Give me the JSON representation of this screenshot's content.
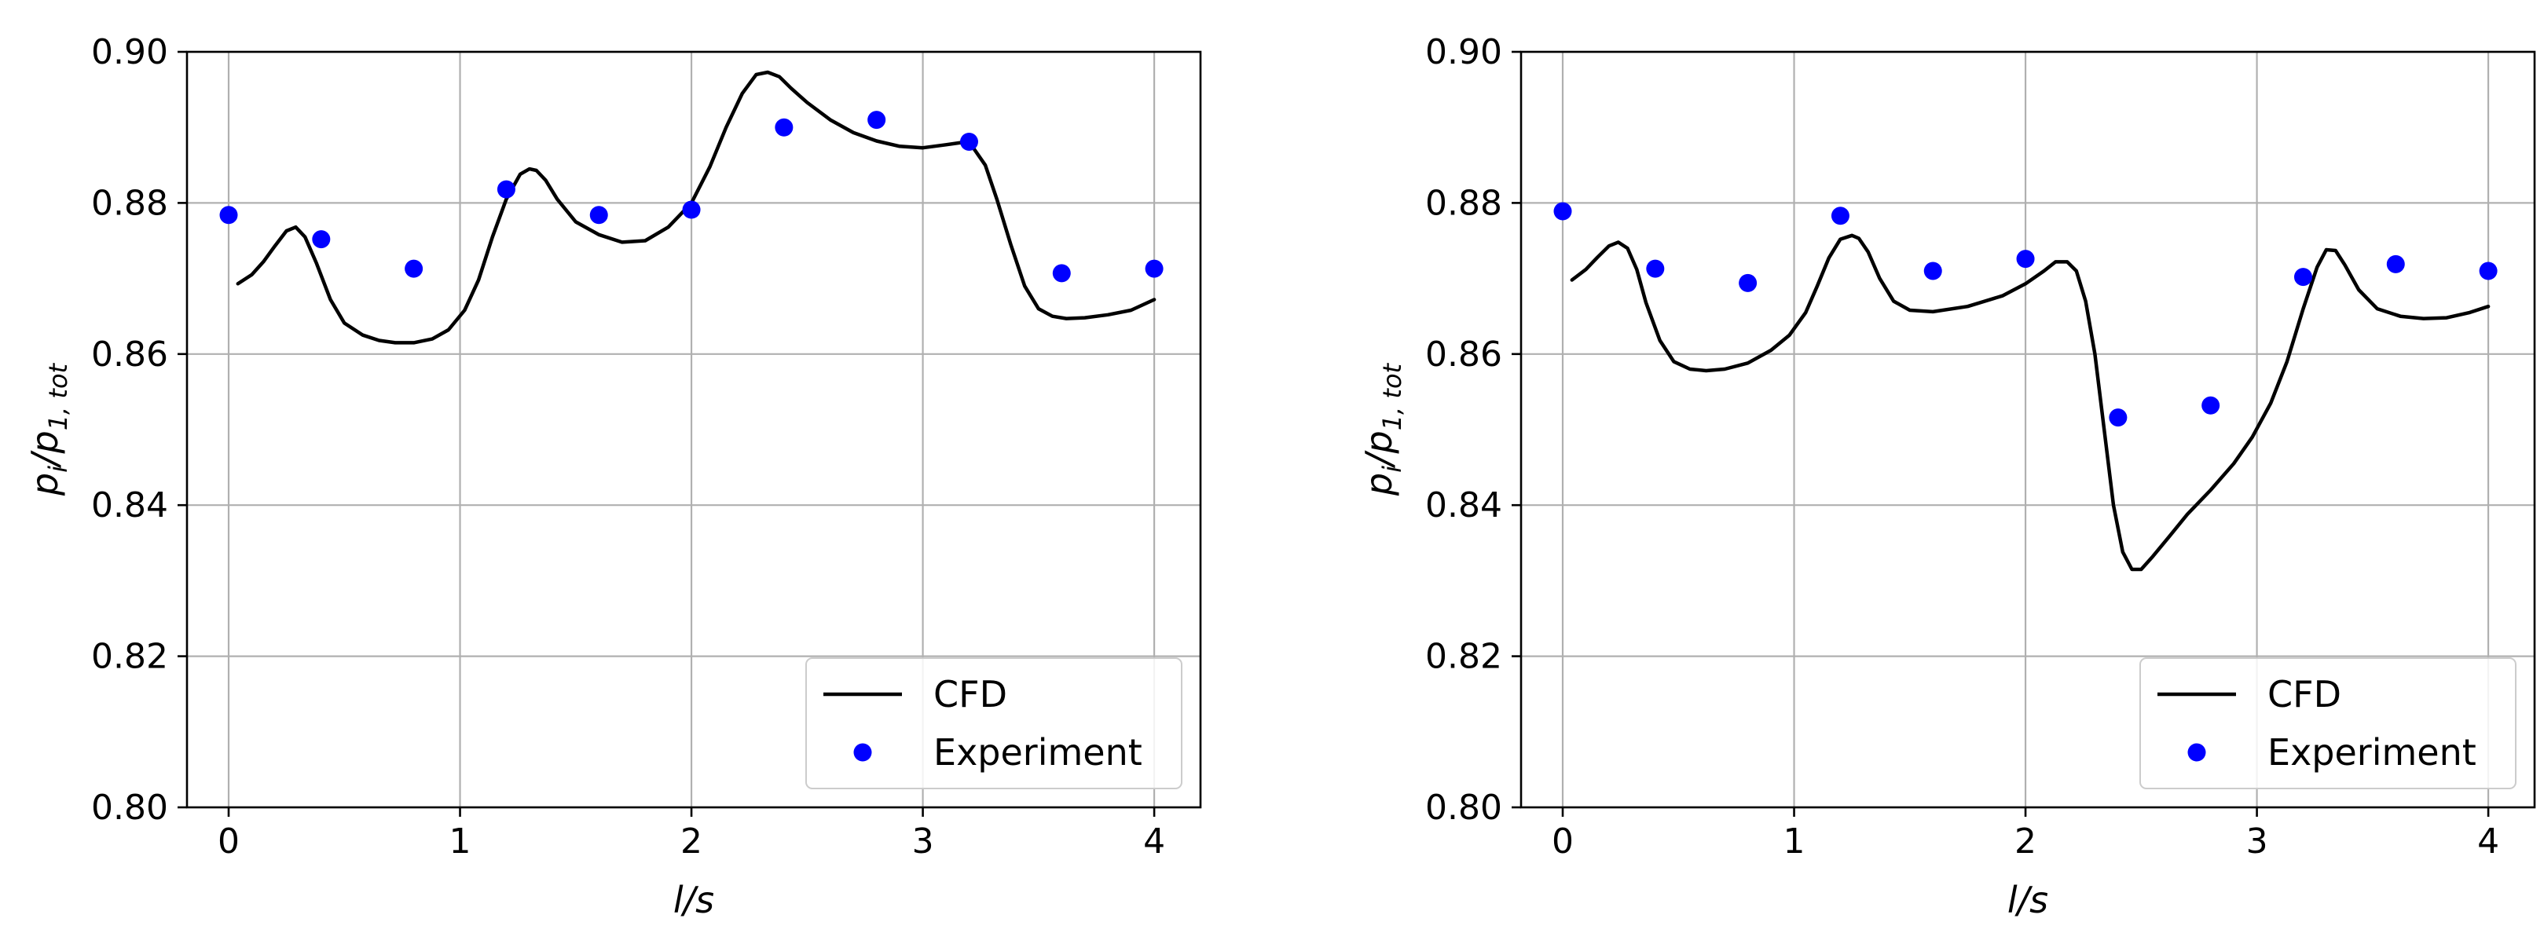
{
  "chart_data": [
    {
      "type": "line",
      "panel": "left",
      "xlabel": "l/s",
      "ylabel_main": "p",
      "ylabel_main_sub": "i",
      "ylabel_slash": "/",
      "ylabel_denom": "p",
      "ylabel_denom_sub": "1, tot",
      "xlim": [
        -0.18,
        4.2
      ],
      "ylim": [
        0.8,
        0.9
      ],
      "xticks": [
        0,
        1,
        2,
        3,
        4
      ],
      "xtick_labels": [
        "0",
        "1",
        "2",
        "3",
        "4"
      ],
      "yticks": [
        0.8,
        0.82,
        0.84,
        0.86,
        0.88,
        0.9
      ],
      "ytick_labels": [
        "0.80",
        "0.82",
        "0.84",
        "0.86",
        "0.88",
        "0.90"
      ],
      "grid": true,
      "legend": {
        "placement": "lower-right",
        "entries": [
          "CFD",
          "Experiment"
        ]
      },
      "series": [
        {
          "name": "CFD",
          "kind": "line",
          "color": "#000000",
          "x": [
            0.04,
            0.1,
            0.15,
            0.2,
            0.25,
            0.29,
            0.33,
            0.38,
            0.44,
            0.5,
            0.58,
            0.65,
            0.72,
            0.8,
            0.88,
            0.95,
            1.02,
            1.08,
            1.14,
            1.2,
            1.26,
            1.3,
            1.33,
            1.37,
            1.42,
            1.5,
            1.6,
            1.7,
            1.8,
            1.9,
            2.0,
            2.08,
            2.15,
            2.22,
            2.28,
            2.33,
            2.38,
            2.43,
            2.5,
            2.6,
            2.7,
            2.8,
            2.9,
            3.0,
            3.1,
            3.17,
            3.22,
            3.27,
            3.32,
            3.38,
            3.44,
            3.5,
            3.56,
            3.62,
            3.7,
            3.8,
            3.9,
            4.0
          ],
          "y": [
            0.8693,
            0.8705,
            0.8722,
            0.8743,
            0.8763,
            0.8768,
            0.8755,
            0.872,
            0.8672,
            0.8641,
            0.8625,
            0.8618,
            0.8615,
            0.8615,
            0.862,
            0.8632,
            0.8658,
            0.8698,
            0.8755,
            0.8805,
            0.8838,
            0.8845,
            0.8843,
            0.883,
            0.8805,
            0.8775,
            0.8758,
            0.8748,
            0.875,
            0.8768,
            0.88,
            0.8848,
            0.89,
            0.8945,
            0.897,
            0.8973,
            0.8967,
            0.8952,
            0.8933,
            0.891,
            0.8893,
            0.8882,
            0.8875,
            0.8873,
            0.8877,
            0.888,
            0.8872,
            0.885,
            0.8805,
            0.8745,
            0.869,
            0.866,
            0.865,
            0.8647,
            0.8648,
            0.8652,
            0.8658,
            0.8672
          ]
        },
        {
          "name": "Experiment",
          "kind": "scatter",
          "color": "#0000ff",
          "x": [
            0.0,
            0.4,
            0.8,
            1.2,
            1.6,
            2.0,
            2.4,
            2.8,
            3.2,
            3.6,
            4.0
          ],
          "y": [
            0.8784,
            0.8752,
            0.8713,
            0.8818,
            0.8784,
            0.8791,
            0.89,
            0.891,
            0.8881,
            0.8707,
            0.8713
          ]
        }
      ]
    },
    {
      "type": "line",
      "panel": "right",
      "xlabel": "l/s",
      "ylabel_main": "p",
      "ylabel_main_sub": "i",
      "ylabel_slash": "/",
      "ylabel_denom": "p",
      "ylabel_denom_sub": "1, tot",
      "xlim": [
        -0.18,
        4.2
      ],
      "ylim": [
        0.8,
        0.9
      ],
      "xticks": [
        0,
        1,
        2,
        3,
        4
      ],
      "xtick_labels": [
        "0",
        "1",
        "2",
        "3",
        "4"
      ],
      "yticks": [
        0.8,
        0.82,
        0.84,
        0.86,
        0.88,
        0.9
      ],
      "ytick_labels": [
        "0.80",
        "0.82",
        "0.84",
        "0.86",
        "0.88",
        "0.90"
      ],
      "grid": true,
      "legend": {
        "placement": "lower-right",
        "entries": [
          "CFD",
          "Experiment"
        ]
      },
      "series": [
        {
          "name": "CFD",
          "kind": "line",
          "color": "#000000",
          "x": [
            0.04,
            0.1,
            0.15,
            0.2,
            0.24,
            0.28,
            0.32,
            0.36,
            0.42,
            0.48,
            0.55,
            0.62,
            0.7,
            0.8,
            0.9,
            0.98,
            1.05,
            1.1,
            1.15,
            1.2,
            1.25,
            1.28,
            1.32,
            1.37,
            1.43,
            1.5,
            1.6,
            1.75,
            1.9,
            2.0,
            2.08,
            2.13,
            2.18,
            2.22,
            2.26,
            2.3,
            2.34,
            2.38,
            2.42,
            2.46,
            2.5,
            2.55,
            2.62,
            2.7,
            2.8,
            2.9,
            2.98,
            3.06,
            3.13,
            3.2,
            3.26,
            3.3,
            3.34,
            3.38,
            3.44,
            3.52,
            3.62,
            3.72,
            3.82,
            3.92,
            4.0
          ],
          "y": [
            0.8698,
            0.8712,
            0.8728,
            0.8743,
            0.8748,
            0.874,
            0.8712,
            0.8668,
            0.8618,
            0.859,
            0.858,
            0.8578,
            0.858,
            0.8588,
            0.8605,
            0.8625,
            0.8655,
            0.869,
            0.8727,
            0.8752,
            0.8757,
            0.8753,
            0.8735,
            0.87,
            0.867,
            0.8658,
            0.8656,
            0.8663,
            0.8677,
            0.8693,
            0.871,
            0.8722,
            0.8722,
            0.871,
            0.867,
            0.86,
            0.85,
            0.84,
            0.8338,
            0.8315,
            0.8315,
            0.8332,
            0.8358,
            0.8388,
            0.842,
            0.8455,
            0.849,
            0.8535,
            0.859,
            0.866,
            0.8715,
            0.8738,
            0.8737,
            0.8718,
            0.8685,
            0.866,
            0.865,
            0.8647,
            0.8648,
            0.8655,
            0.8663
          ]
        },
        {
          "name": "Experiment",
          "kind": "scatter",
          "color": "#0000ff",
          "x": [
            0.0,
            0.4,
            0.8,
            1.2,
            1.6,
            2.0,
            2.4,
            2.8,
            3.2,
            3.6,
            4.0
          ],
          "y": [
            0.8789,
            0.8713,
            0.8694,
            0.8783,
            0.871,
            0.8726,
            0.8516,
            0.8532,
            0.8702,
            0.8719,
            0.871
          ]
        }
      ]
    }
  ]
}
